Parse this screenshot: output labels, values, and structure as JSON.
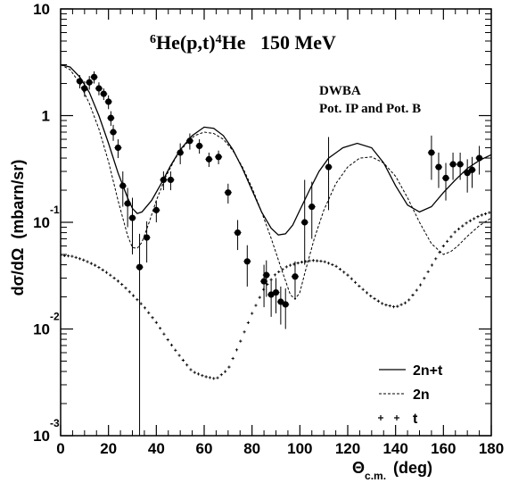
{
  "chart_data": {
    "type": "scatter",
    "title_parts": {
      "sup1": "6",
      "main1": "He(p,t)",
      "sup2": "4",
      "main2": "He   150 MeV"
    },
    "annotation_lines": [
      "DWBA",
      "Pot. IP and Pot. B"
    ],
    "xlabel": {
      "main": "Θ",
      "sub": "c.m.",
      "unit": "(deg)"
    },
    "ylabel": "dσ/dΩ  (mbarn/sr)",
    "xlim": [
      0,
      180
    ],
    "ylim": [
      0.001,
      10
    ],
    "yscale": "log",
    "x_ticks": [
      0,
      20,
      40,
      60,
      80,
      100,
      120,
      140,
      160,
      180
    ],
    "y_ticks": [
      {
        "value": 10,
        "base": "10",
        "exp": ""
      },
      {
        "value": 1,
        "base": "1",
        "exp": ""
      },
      {
        "value": 0.1,
        "base": "10",
        "exp": "-1"
      },
      {
        "value": 0.01,
        "base": "10",
        "exp": "-2"
      },
      {
        "value": 0.001,
        "base": "10",
        "exp": "-3"
      }
    ],
    "legend": {
      "position": "bottom-right",
      "entries": [
        "2n+t",
        "2n",
        "t"
      ]
    },
    "series": [
      {
        "name": "2n+t",
        "style": "solid",
        "x": [
          0,
          4,
          8,
          12,
          16,
          20,
          24,
          28,
          30,
          32,
          34,
          38,
          42,
          46,
          50,
          55,
          60,
          64,
          68,
          72,
          76,
          80,
          84,
          88,
          91,
          94,
          97,
          100,
          104,
          108,
          112,
          118,
          124,
          130,
          135,
          140,
          145,
          150,
          155,
          160,
          165,
          170,
          175,
          180
        ],
        "y": [
          3.0,
          2.85,
          2.3,
          1.65,
          1.0,
          0.55,
          0.29,
          0.17,
          0.135,
          0.121,
          0.125,
          0.16,
          0.23,
          0.34,
          0.48,
          0.65,
          0.78,
          0.76,
          0.65,
          0.48,
          0.32,
          0.2,
          0.125,
          0.088,
          0.076,
          0.078,
          0.094,
          0.13,
          0.2,
          0.3,
          0.4,
          0.5,
          0.55,
          0.5,
          0.36,
          0.22,
          0.145,
          0.125,
          0.14,
          0.19,
          0.25,
          0.32,
          0.38,
          0.43
        ]
      },
      {
        "name": "2n",
        "style": "dashed",
        "x": [
          0,
          4,
          8,
          12,
          16,
          20,
          24,
          28,
          30,
          32,
          34,
          37,
          40,
          44,
          48,
          52,
          56,
          60,
          64,
          68,
          72,
          76,
          80,
          84,
          88,
          92,
          96,
          98,
          100,
          102,
          106,
          110,
          115,
          120,
          125,
          130,
          135,
          140,
          145,
          150,
          155,
          160,
          163,
          166,
          170,
          175,
          180
        ],
        "y": [
          3.0,
          2.7,
          2.0,
          1.3,
          0.75,
          0.37,
          0.16,
          0.075,
          0.058,
          0.057,
          0.065,
          0.1,
          0.16,
          0.27,
          0.4,
          0.53,
          0.65,
          0.7,
          0.68,
          0.6,
          0.47,
          0.33,
          0.21,
          0.125,
          0.071,
          0.038,
          0.021,
          0.019,
          0.022,
          0.033,
          0.07,
          0.13,
          0.23,
          0.33,
          0.4,
          0.41,
          0.36,
          0.27,
          0.17,
          0.1,
          0.063,
          0.05,
          0.053,
          0.06,
          0.074,
          0.093,
          0.11
        ]
      },
      {
        "name": "t",
        "style": "crosses",
        "x": [
          0,
          5,
          10,
          15,
          20,
          25,
          30,
          35,
          40,
          45,
          50,
          55,
          60,
          65,
          70,
          75,
          80,
          85,
          90,
          95,
          100,
          105,
          110,
          115,
          120,
          125,
          130,
          135,
          140,
          145,
          150,
          155,
          160,
          165,
          170,
          175,
          180
        ],
        "y": [
          0.049,
          0.048,
          0.044,
          0.039,
          0.033,
          0.027,
          0.021,
          0.016,
          0.0115,
          0.0078,
          0.0055,
          0.004,
          0.0036,
          0.0034,
          0.0042,
          0.0075,
          0.014,
          0.024,
          0.033,
          0.039,
          0.042,
          0.044,
          0.043,
          0.039,
          0.032,
          0.025,
          0.02,
          0.017,
          0.016,
          0.018,
          0.025,
          0.039,
          0.06,
          0.082,
          0.1,
          0.115,
          0.125
        ]
      },
      {
        "name": "data",
        "style": "points",
        "x": [
          8,
          10,
          12,
          14,
          16,
          18,
          20,
          21,
          22,
          24,
          26,
          28,
          30,
          33,
          36,
          40,
          43,
          46,
          50,
          54,
          58,
          62,
          66,
          70,
          74,
          78,
          85,
          86,
          88,
          90,
          92,
          94,
          98,
          102,
          105,
          112,
          155,
          158,
          161,
          164,
          167,
          170,
          172,
          175
        ],
        "y": [
          2.1,
          1.8,
          2.05,
          2.3,
          1.8,
          1.6,
          1.35,
          0.95,
          0.7,
          0.5,
          0.22,
          0.15,
          0.11,
          0.038,
          0.072,
          0.13,
          0.25,
          0.25,
          0.45,
          0.58,
          0.52,
          0.39,
          0.41,
          0.19,
          0.08,
          0.043,
          0.028,
          0.032,
          0.021,
          0.022,
          0.018,
          0.017,
          0.031,
          0.1,
          0.14,
          0.33,
          0.45,
          0.33,
          0.26,
          0.35,
          0.35,
          0.29,
          0.31,
          0.4
        ],
        "yerr_low": [
          0.3,
          0.3,
          0.3,
          0.3,
          0.25,
          0.2,
          0.2,
          0.15,
          0.12,
          0.1,
          0.08,
          0.06,
          0.06,
          0.0375,
          0.03,
          0.03,
          0.05,
          0.05,
          0.1,
          0.1,
          0.08,
          0.06,
          0.06,
          0.04,
          0.025,
          0.018,
          0.012,
          0.012,
          0.008,
          0.008,
          0.007,
          0.007,
          0.012,
          0.06,
          0.07,
          0.2,
          0.2,
          0.12,
          0.1,
          0.1,
          0.1,
          0.1,
          0.1,
          0.12
        ],
        "yerr_high": [
          0.3,
          0.3,
          0.3,
          0.3,
          0.25,
          0.2,
          0.2,
          0.15,
          0.12,
          0.1,
          0.08,
          0.06,
          0.06,
          0.04,
          0.03,
          0.03,
          0.05,
          0.05,
          0.1,
          0.1,
          0.08,
          0.06,
          0.06,
          0.04,
          0.025,
          0.018,
          0.012,
          0.012,
          0.008,
          0.008,
          0.007,
          0.007,
          0.012,
          0.15,
          0.1,
          0.3,
          0.2,
          0.12,
          0.1,
          0.1,
          0.1,
          0.1,
          0.1,
          0.12
        ],
        "xerr": 1.5
      }
    ]
  }
}
